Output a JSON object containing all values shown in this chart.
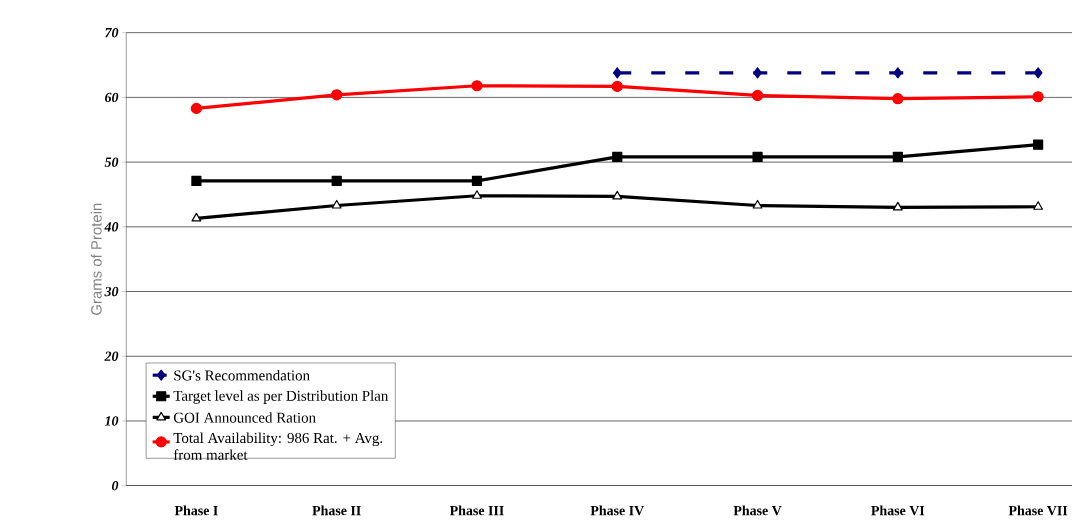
{
  "chart_data": {
    "type": "line",
    "ylabel": "Grams of Protein",
    "categories": [
      "Phase I",
      "Phase II",
      "Phase III",
      "Phase IV",
      "Phase V",
      "Phase VI",
      "Phase VII"
    ],
    "series": [
      {
        "name": "SG's Recommendation",
        "color": "#000080",
        "marker": "diamond",
        "line_style": "dashed",
        "values": [
          null,
          null,
          null,
          63.8,
          63.8,
          63.8,
          63.8
        ]
      },
      {
        "name": "Target level as per Distribution Plan",
        "color": "#000000",
        "marker": "square",
        "line_style": "solid",
        "values": [
          47.1,
          47.1,
          47.1,
          50.8,
          50.8,
          50.8,
          52.7
        ]
      },
      {
        "name": "GOI Announced Ration",
        "color": "#000000",
        "marker": "triangle",
        "line_style": "solid",
        "values": [
          41.3,
          43.3,
          44.8,
          44.7,
          43.3,
          43.0,
          43.1
        ]
      },
      {
        "name": "Total Availability:  986 Rat. + Avg. from market",
        "color": "#ff0000",
        "marker": "circle",
        "line_style": "solid",
        "values": [
          58.3,
          60.4,
          61.8,
          61.7,
          60.3,
          59.8,
          60.1
        ]
      }
    ],
    "ylim": [
      0,
      70
    ],
    "yticks": [
      0,
      10,
      20,
      30,
      40,
      50,
      60,
      70
    ],
    "grid": "y",
    "legend": "bottom left"
  }
}
